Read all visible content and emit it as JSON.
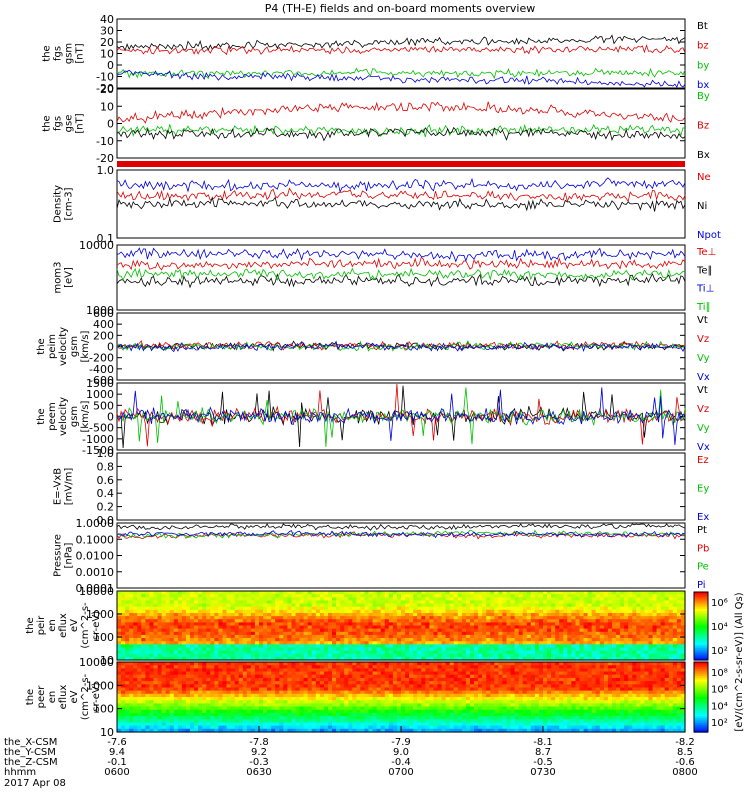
{
  "title": "P4 (TH-E) fields and on-board moments overview",
  "colors": {
    "black": "#000000",
    "red": "#e00000",
    "green": "#00c000",
    "blue": "#0000e0"
  },
  "chart_data": [
    {
      "type": "line",
      "panel": "fgs-gsm",
      "ylabel_lines": [
        "the",
        "fgs",
        "gsm",
        "[nT]"
      ],
      "yticks": [
        "40",
        "30",
        "20",
        "10",
        "0",
        "-10",
        "-20"
      ],
      "ylim": [
        -20,
        40
      ],
      "series": [
        {
          "name": "Bt",
          "color": "#000000"
        },
        {
          "name": "bz",
          "color": "#e00000"
        },
        {
          "name": "by",
          "color": "#00c000"
        },
        {
          "name": "bx",
          "color": "#0000e0"
        }
      ]
    },
    {
      "type": "line",
      "panel": "fgs-gse",
      "ylabel_lines": [
        "the",
        "fgs",
        "gse",
        "[nT]"
      ],
      "yticks": [
        "20",
        "10",
        "0",
        "-10",
        "-20"
      ],
      "ylim": [
        -25,
        25
      ],
      "series": [
        {
          "name": "By",
          "color": "#00c000"
        },
        {
          "name": "Bz",
          "color": "#e00000"
        },
        {
          "name": "Bx",
          "color": "#000000"
        }
      ]
    },
    {
      "type": "line",
      "panel": "density",
      "ylabel_lines": [
        "Density",
        "[cm-3]"
      ],
      "yticks": [
        "1.0",
        "0.1"
      ],
      "scale": "log",
      "series": [
        {
          "name": "Ne",
          "color": "#e00000"
        },
        {
          "name": "Ni",
          "color": "#000000"
        },
        {
          "name": "Npot",
          "color": "#0000e0"
        }
      ]
    },
    {
      "type": "line",
      "panel": "temperature",
      "ylabel_lines": [
        "mom3",
        "[eV]"
      ],
      "yticks": [
        "10000",
        "1000"
      ],
      "scale": "log",
      "series": [
        {
          "name": "Te⊥",
          "color": "#e00000"
        },
        {
          "name": "Te∥",
          "color": "#000000"
        },
        {
          "name": "Ti⊥",
          "color": "#0000e0"
        },
        {
          "name": "Ti∥",
          "color": "#00c000"
        }
      ]
    },
    {
      "type": "line",
      "panel": "peim-velocity",
      "ylabel_lines": [
        "the",
        "peim",
        "velocity",
        "gsm",
        "[km/s]"
      ],
      "yticks": [
        "600",
        "400",
        "200",
        "0",
        "-200",
        "-400",
        "-600"
      ],
      "ylim": [
        -600,
        600
      ],
      "series": [
        {
          "name": "Vt",
          "color": "#000000"
        },
        {
          "name": "Vz",
          "color": "#e00000"
        },
        {
          "name": "Vy",
          "color": "#00c000"
        },
        {
          "name": "Vx",
          "color": "#0000e0"
        }
      ]
    },
    {
      "type": "line",
      "panel": "peem-velocity",
      "ylabel_lines": [
        "the",
        "peem",
        "velocity",
        "gsm",
        "[km/s]"
      ],
      "yticks": [
        "1500",
        "1000",
        "500",
        "0",
        "-500",
        "-1000",
        "-1500"
      ],
      "ylim": [
        -1500,
        1500
      ],
      "series": [
        {
          "name": "Vt",
          "color": "#000000"
        },
        {
          "name": "Vz",
          "color": "#e00000"
        },
        {
          "name": "Vy",
          "color": "#00c000"
        },
        {
          "name": "Vx",
          "color": "#0000e0"
        }
      ]
    },
    {
      "type": "line",
      "panel": "efield",
      "ylabel_lines": [
        "E=-VxB",
        "[mV/m]"
      ],
      "yticks": [
        "1.0",
        "0.8",
        "0.6",
        "0.4",
        "0.2",
        "0.0"
      ],
      "ylim": [
        0,
        1
      ],
      "series": [
        {
          "name": "Ez",
          "color": "#e00000"
        },
        {
          "name": "Ey",
          "color": "#00c000"
        },
        {
          "name": "Ex",
          "color": "#0000e0"
        }
      ]
    },
    {
      "type": "line",
      "panel": "pressure",
      "ylabel_lines": [
        "Pressure",
        "[nPa]"
      ],
      "yticks": [
        "1.0000",
        "0.1000",
        "0.0100",
        "0.0010",
        "0.0001"
      ],
      "scale": "log",
      "series": [
        {
          "name": "Pt",
          "color": "#000000"
        },
        {
          "name": "Pb",
          "color": "#e00000"
        },
        {
          "name": "Pe",
          "color": "#00c000"
        },
        {
          "name": "Pi",
          "color": "#0000e0"
        }
      ]
    },
    {
      "type": "heatmap",
      "panel": "peir-spectrogram",
      "ylabel_lines": [
        "the",
        "peir",
        "en",
        "eflux",
        "eV",
        "(cm^2-s-",
        "sr-eV)"
      ],
      "yticks": [
        "10000",
        "1000",
        "100",
        "10"
      ],
      "scale": "log"
    },
    {
      "type": "heatmap",
      "panel": "peer-spectrogram",
      "ylabel_lines": [
        "the",
        "peer",
        "en",
        "eflux",
        "eV",
        "(cm^2-s-",
        "sr-eV)"
      ],
      "yticks": [
        "10000",
        "1000",
        "100",
        "10"
      ],
      "scale": "log"
    }
  ],
  "colorbar": {
    "upper_ticks": [
      "10⁶",
      "10⁴",
      "10²"
    ],
    "lower_ticks": [
      "10⁸",
      "10⁶",
      "10⁴",
      "10²"
    ],
    "label": "[eV/(cm^2-s-sr-eV)] (All Qs)"
  },
  "xaxis": {
    "rows": [
      {
        "name": "the_X-CSM",
        "values": [
          "-7.6",
          "-7.8",
          "-7.9",
          "-8.1",
          "-8.2"
        ]
      },
      {
        "name": "the_Y-CSM",
        "values": [
          "9.4",
          "9.2",
          "9.0",
          "8.7",
          "8.5"
        ]
      },
      {
        "name": "the_Z-CSM",
        "values": [
          "-0.1",
          "-0.3",
          "-0.4",
          "-0.5",
          "-0.6"
        ]
      },
      {
        "name": "hhmm",
        "values": [
          "0600",
          "0630",
          "0700",
          "0730",
          "0800"
        ]
      }
    ],
    "date": "2017 Apr 08"
  }
}
